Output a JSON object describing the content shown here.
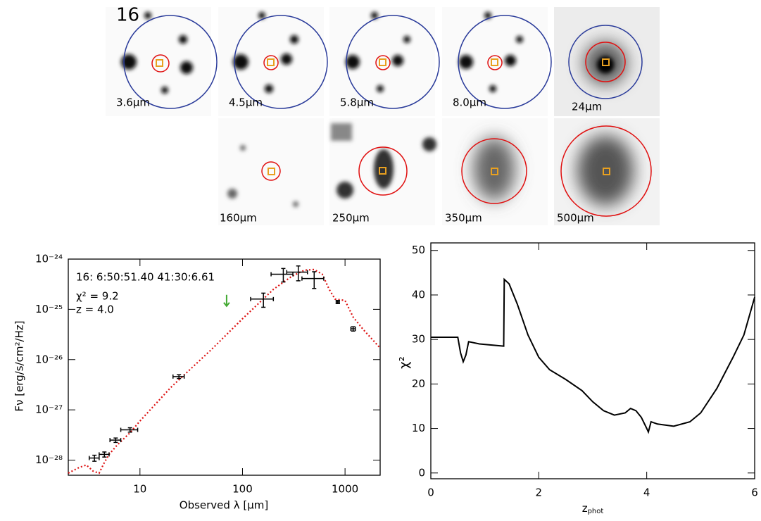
{
  "figure_label": "16",
  "cutouts": [
    "3.6μm",
    "4.5μm",
    "5.8μm",
    "8.0μm",
    "24μm",
    "160μm",
    "250μm",
    "350μm",
    "500μm"
  ],
  "chart_data": [
    {
      "type": "scatter",
      "xscale": "log",
      "yscale": "log",
      "xlabel": "Observed λ [μm]",
      "ylabel": "Fν [erg/s/cm²/Hz]",
      "annotations": [
        "16: 6:50:51.40 41:30:6.61",
        "χ² = 9.2",
        "z = 4.0"
      ],
      "xlim": [
        2,
        2200
      ],
      "xticks": [
        10,
        100,
        1000
      ],
      "ylim": [
        5e-29,
        1e-24
      ],
      "yticks": [
        {
          "value": 1e-28,
          "label": "10⁻²⁸"
        },
        {
          "value": 1e-27,
          "label": "10⁻²⁷"
        },
        {
          "value": 1e-26,
          "label": "10⁻²⁶"
        },
        {
          "value": 1e-25,
          "label": "10⁻²⁵"
        },
        {
          "value": 1e-24,
          "label": "10⁻²⁴"
        }
      ],
      "points": {
        "color": "#000000",
        "x": [
          3.6,
          4.5,
          5.8,
          8.0,
          24,
          160,
          250,
          350,
          500,
          850,
          1200
        ],
        "values": [
          1.1e-28,
          1.3e-28,
          2.5e-28,
          4e-28,
          4.6e-27,
          1.6e-25,
          5e-25,
          5.5e-25,
          4.1e-25,
          1.4e-25,
          4.1e-26
        ],
        "xerr": [
          0.4,
          0.5,
          0.7,
          1.5,
          3,
          40,
          60,
          80,
          120,
          30,
          60
        ],
        "yerr": [
          1.5e-29,
          1.5e-29,
          2.5e-29,
          4e-29,
          4e-28,
          5e-26,
          1.5e-25,
          1.8e-25,
          1.5e-25,
          1e-26,
          4e-27
        ]
      },
      "upper_limits": {
        "color": "#44aa33",
        "x": [
          70
        ],
        "values": [
          1.5e-25
        ]
      },
      "model": {
        "color": "#dd1111",
        "x": [
          2,
          2.5,
          3,
          3.5,
          4,
          4.5,
          5,
          6,
          8,
          10,
          20,
          50,
          100,
          200,
          300,
          400,
          500,
          600,
          700,
          800,
          1000,
          1200,
          1500,
          2200
        ],
        "values": [
          5.5e-29,
          7e-29,
          8e-29,
          6e-29,
          5.5e-29,
          9e-29,
          1.3e-28,
          2e-28,
          3.5e-28,
          6e-28,
          2.8e-27,
          1.6e-26,
          6.5e-26,
          2.5e-25,
          4.5e-25,
          6e-25,
          6.2e-25,
          5e-25,
          2.5e-25,
          1.6e-25,
          1.5e-25,
          7e-26,
          4e-26,
          1.7e-26
        ]
      }
    },
    {
      "type": "line",
      "xlabel": "z",
      "xlabel_subscript": "phot",
      "ylabel": "χ²",
      "xlim": [
        0,
        6
      ],
      "xticks": [
        0,
        2,
        4,
        6
      ],
      "ylim": [
        -1.3,
        51.7
      ],
      "yticks": [
        0,
        10,
        20,
        30,
        40,
        50
      ],
      "color": "#000000",
      "x": [
        0,
        0.5,
        0.55,
        0.6,
        0.65,
        0.7,
        0.9,
        1.35,
        1.36,
        1.45,
        1.6,
        1.8,
        2.0,
        2.2,
        2.5,
        2.8,
        3.0,
        3.2,
        3.4,
        3.6,
        3.7,
        3.8,
        3.9,
        4.0,
        4.03,
        4.08,
        4.2,
        4.5,
        4.8,
        5.0,
        5.3,
        5.6,
        5.8,
        6.0
      ],
      "values": [
        30.5,
        30.5,
        27,
        25,
        26.5,
        29.5,
        29,
        28.5,
        43.5,
        42.5,
        38,
        31,
        26,
        23.2,
        21,
        18.5,
        16,
        14,
        13,
        13.5,
        14.5,
        14,
        12.5,
        10,
        9.2,
        11.5,
        11,
        10.5,
        11.5,
        13.5,
        19,
        26,
        31,
        39.5
      ]
    }
  ]
}
